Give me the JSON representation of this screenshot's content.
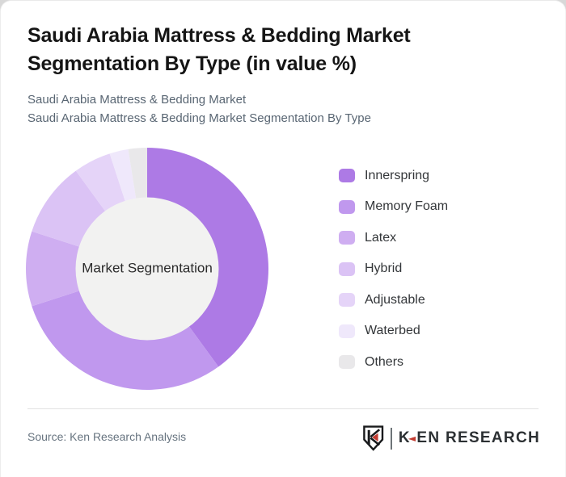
{
  "header": {
    "title": "Saudi Arabia Mattress & Bedding Market Segmentation By Type (in value %)",
    "subtitle_line1": "Saudi Arabia Mattress & Bedding Market",
    "subtitle_line2": "Saudi Arabia Mattress & Bedding Market Segmentation By Type"
  },
  "chart_data": {
    "type": "pie",
    "variant": "donut",
    "title": "Saudi Arabia Mattress & Bedding Market Segmentation By Type (in value %)",
    "center_label": "Market Segmentation",
    "categories": [
      "Innerspring",
      "Memory Foam",
      "Latex",
      "Hybrid",
      "Adjustable",
      "Waterbed",
      "Others"
    ],
    "values": [
      40,
      30,
      10,
      10,
      5,
      2.5,
      2.5
    ],
    "unit": "value %",
    "colors": [
      "#ad7ae5",
      "#c098ee",
      "#cfaef1",
      "#dbc3f5",
      "#e5d4f8",
      "#efe8fb",
      "#e9e8ea"
    ],
    "hole_color": "#f2f2f1",
    "start_angle_deg": 0,
    "direction": "clockwise",
    "legend_position": "right",
    "labels_shown": false
  },
  "footer": {
    "source": "Source: Ken Research Analysis",
    "logo": {
      "k": "K",
      "arrow_glyph": "◄",
      "rest": "EN RESEARCH",
      "brand": "Ken Research",
      "accent_color": "#c23b30"
    }
  }
}
